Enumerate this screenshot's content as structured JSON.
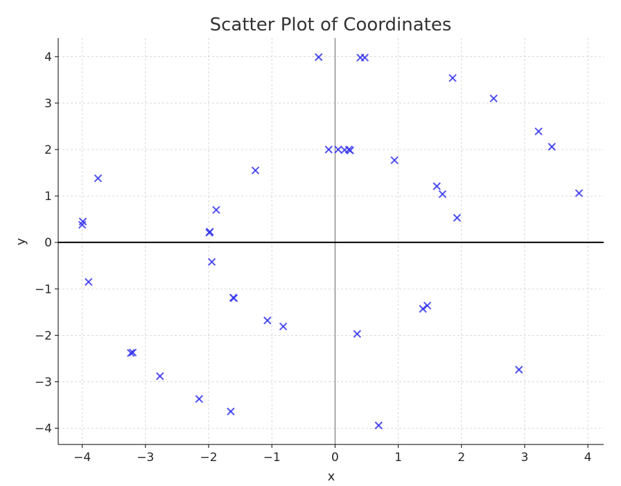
{
  "chart_data": {
    "type": "scatter",
    "title": "Scatter Plot of Coordinates",
    "xlabel": "x",
    "ylabel": "y",
    "xlim": [
      -4.38,
      4.25
    ],
    "ylim": [
      -4.35,
      4.4
    ],
    "xticks": [
      -4,
      -3,
      -2,
      -1,
      0,
      1,
      2,
      3,
      4
    ],
    "yticks": [
      -4,
      -3,
      -2,
      -1,
      0,
      1,
      2,
      3,
      4
    ],
    "xtick_labels": [
      "−4",
      "−3",
      "−2",
      "−1",
      "0",
      "1",
      "2",
      "3",
      "4"
    ],
    "ytick_labels": [
      "−4",
      "−3",
      "−2",
      "−1",
      "0",
      "1",
      "2",
      "3",
      "4"
    ],
    "grid": true,
    "marker": "x",
    "color": "#3333ee",
    "points": [
      {
        "x": -4.0,
        "y": 0.38
      },
      {
        "x": -3.99,
        "y": 0.45
      },
      {
        "x": -3.75,
        "y": 1.38
      },
      {
        "x": -3.9,
        "y": -0.85
      },
      {
        "x": -3.23,
        "y": -2.38
      },
      {
        "x": -3.2,
        "y": -2.37
      },
      {
        "x": -2.77,
        "y": -2.88
      },
      {
        "x": -2.15,
        "y": -3.37
      },
      {
        "x": -1.99,
        "y": 0.21
      },
      {
        "x": -1.98,
        "y": 0.23
      },
      {
        "x": -1.95,
        "y": -0.42
      },
      {
        "x": -1.88,
        "y": 0.7
      },
      {
        "x": -1.65,
        "y": -3.64
      },
      {
        "x": -1.61,
        "y": -1.19
      },
      {
        "x": -1.6,
        "y": -1.2
      },
      {
        "x": -1.26,
        "y": 1.55
      },
      {
        "x": -1.07,
        "y": -1.68
      },
      {
        "x": -0.82,
        "y": -1.81
      },
      {
        "x": -0.26,
        "y": 3.99
      },
      {
        "x": -0.1,
        "y": 2.0
      },
      {
        "x": 0.05,
        "y": 2.0
      },
      {
        "x": 0.15,
        "y": 1.99
      },
      {
        "x": 0.22,
        "y": 2.0
      },
      {
        "x": 0.24,
        "y": 1.98
      },
      {
        "x": 0.35,
        "y": -1.97
      },
      {
        "x": 0.4,
        "y": 3.98
      },
      {
        "x": 0.47,
        "y": 3.98
      },
      {
        "x": 0.69,
        "y": -3.94
      },
      {
        "x": 0.94,
        "y": 1.77
      },
      {
        "x": 1.39,
        "y": -1.43
      },
      {
        "x": 1.46,
        "y": -1.36
      },
      {
        "x": 1.61,
        "y": 1.21
      },
      {
        "x": 1.7,
        "y": 1.04
      },
      {
        "x": 1.86,
        "y": 3.54
      },
      {
        "x": 1.93,
        "y": 0.53
      },
      {
        "x": 2.51,
        "y": 3.1
      },
      {
        "x": 2.91,
        "y": -2.74
      },
      {
        "x": 3.22,
        "y": 2.39
      },
      {
        "x": 3.43,
        "y": 2.06
      },
      {
        "x": 3.86,
        "y": 1.06
      }
    ]
  }
}
